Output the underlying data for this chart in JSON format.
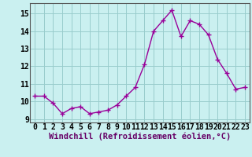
{
  "x": [
    0,
    1,
    2,
    3,
    4,
    5,
    6,
    7,
    8,
    9,
    10,
    11,
    12,
    13,
    14,
    15,
    16,
    17,
    18,
    19,
    20,
    21,
    22,
    23
  ],
  "y": [
    10.3,
    10.3,
    9.9,
    9.3,
    9.6,
    9.7,
    9.3,
    9.4,
    9.5,
    9.8,
    10.3,
    10.8,
    12.1,
    14.0,
    14.6,
    15.2,
    13.7,
    14.6,
    14.4,
    13.8,
    12.4,
    11.6,
    10.7,
    10.8
  ],
  "line_color": "#990099",
  "marker": "+",
  "marker_size": 4,
  "line_width": 1.0,
  "bg_color": "#caf0f0",
  "grid_color": "#99cccc",
  "xlabel": "Windchill (Refroidissement éolien,°C)",
  "xlabel_fontsize": 7.5,
  "tick_fontsize": 7,
  "xlim": [
    -0.5,
    23.5
  ],
  "ylim": [
    8.8,
    15.6
  ],
  "yticks": [
    9,
    10,
    11,
    12,
    13,
    14,
    15
  ],
  "xticks": [
    0,
    1,
    2,
    3,
    4,
    5,
    6,
    7,
    8,
    9,
    10,
    11,
    12,
    13,
    14,
    15,
    16,
    17,
    18,
    19,
    20,
    21,
    22,
    23
  ]
}
